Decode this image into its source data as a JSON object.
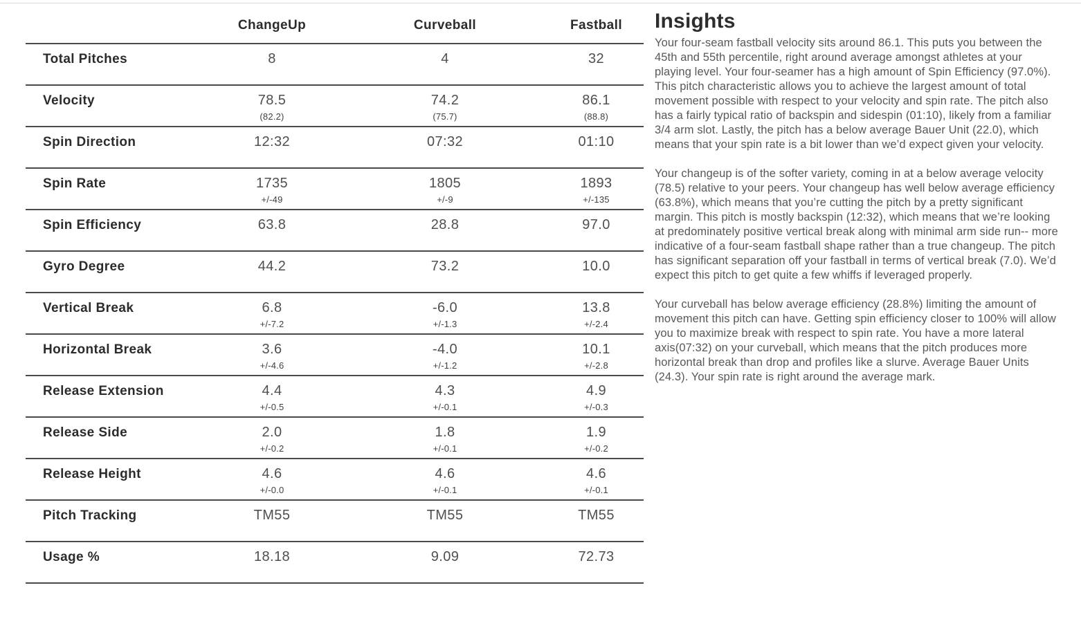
{
  "colors": {
    "table_rule": "#4a4a4a",
    "top_divider": "#d8d8d8",
    "label_text": "#2b2b2b",
    "value_text": "#4f4f4f",
    "body_text": "#58585a"
  },
  "table": {
    "columns": [
      "ChangeUp",
      "Curveball",
      "Fastball"
    ],
    "rows": [
      {
        "label": "Total Pitches",
        "values": [
          "8",
          "4",
          "32"
        ],
        "subs": [
          "",
          "",
          ""
        ]
      },
      {
        "label": "Velocity",
        "values": [
          "78.5",
          "74.2",
          "86.1"
        ],
        "subs": [
          "(82.2)",
          "(75.7)",
          "(88.8)"
        ]
      },
      {
        "label": "Spin Direction",
        "values": [
          "12:32",
          "07:32",
          "01:10"
        ],
        "subs": [
          "",
          "",
          ""
        ]
      },
      {
        "label": "Spin Rate",
        "values": [
          "1735",
          "1805",
          "1893"
        ],
        "subs": [
          "+/-49",
          "+/-9",
          "+/-135"
        ]
      },
      {
        "label": "Spin Efficiency",
        "values": [
          "63.8",
          "28.8",
          "97.0"
        ],
        "subs": [
          "",
          "",
          ""
        ]
      },
      {
        "label": "Gyro Degree",
        "values": [
          "44.2",
          "73.2",
          "10.0"
        ],
        "subs": [
          "",
          "",
          ""
        ]
      },
      {
        "label": "Vertical Break",
        "values": [
          "6.8",
          "-6.0",
          "13.8"
        ],
        "subs": [
          "+/-7.2",
          "+/-1.3",
          "+/-2.4"
        ]
      },
      {
        "label": "Horizontal Break",
        "values": [
          "3.6",
          "-4.0",
          "10.1"
        ],
        "subs": [
          "+/-4.6",
          "+/-1.2",
          "+/-2.8"
        ]
      },
      {
        "label": "Release Extension",
        "values": [
          "4.4",
          "4.3",
          "4.9"
        ],
        "subs": [
          "+/-0.5",
          "+/-0.1",
          "+/-0.3"
        ]
      },
      {
        "label": "Release Side",
        "values": [
          "2.0",
          "1.8",
          "1.9"
        ],
        "subs": [
          "+/-0.2",
          "+/-0.1",
          "+/-0.2"
        ]
      },
      {
        "label": "Release Height",
        "values": [
          "4.6",
          "4.6",
          "4.6"
        ],
        "subs": [
          "+/-0.0",
          "+/-0.1",
          "+/-0.1"
        ]
      },
      {
        "label": "Pitch Tracking",
        "values": [
          "TM55",
          "TM55",
          "TM55"
        ],
        "subs": [
          "",
          "",
          ""
        ]
      },
      {
        "label": "Usage %",
        "values": [
          "18.18",
          "9.09",
          "72.73"
        ],
        "subs": [
          "",
          "",
          ""
        ]
      }
    ]
  },
  "insights": {
    "title": "Insights",
    "paragraphs": [
      "Your four-seam fastball velocity sits around 86.1. This puts you between the 45th and 55th percentile, right around average amongst athletes at your playing level. Your four-seamer has a high amount of Spin Efficiency (97.0%). This pitch characteristic allows you to achieve the largest amount of total movement possible with respect to your velocity and spin rate. The pitch also has a fairly typical ratio of backspin and sidespin (01:10), likely from a familiar 3/4 arm slot. Lastly, the pitch has a below average Bauer Unit (22.0), which means that your spin rate is a bit lower than we’d expect given your velocity.",
      "Your changeup is of the softer variety, coming in at a below average velocity (78.5) relative to your peers. Your changeup has well below average efficiency (63.8%), which means that you’re cutting the pitch by a pretty significant margin. This pitch is mostly backspin (12:32), which means that we’re looking at predominately positive vertical break along with minimal arm side run-- more indicative of a four-seam fastball shape rather than a true changeup. The pitch has significant separation off your fastball in terms of vertical break (7.0). We’d expect this pitch to get quite a few whiffs if leveraged properly.",
      "Your curveball has below average efficiency (28.8%) limiting the amount of movement this pitch can have. Getting spin efficiency closer to 100% will allow you to maximize break with respect to spin rate. You have a more lateral axis(07:32) on your curveball, which means that the pitch produces more horizontal break than drop and profiles like a slurve. Average Bauer Units (24.3). Your spin rate is right around the average mark."
    ]
  }
}
